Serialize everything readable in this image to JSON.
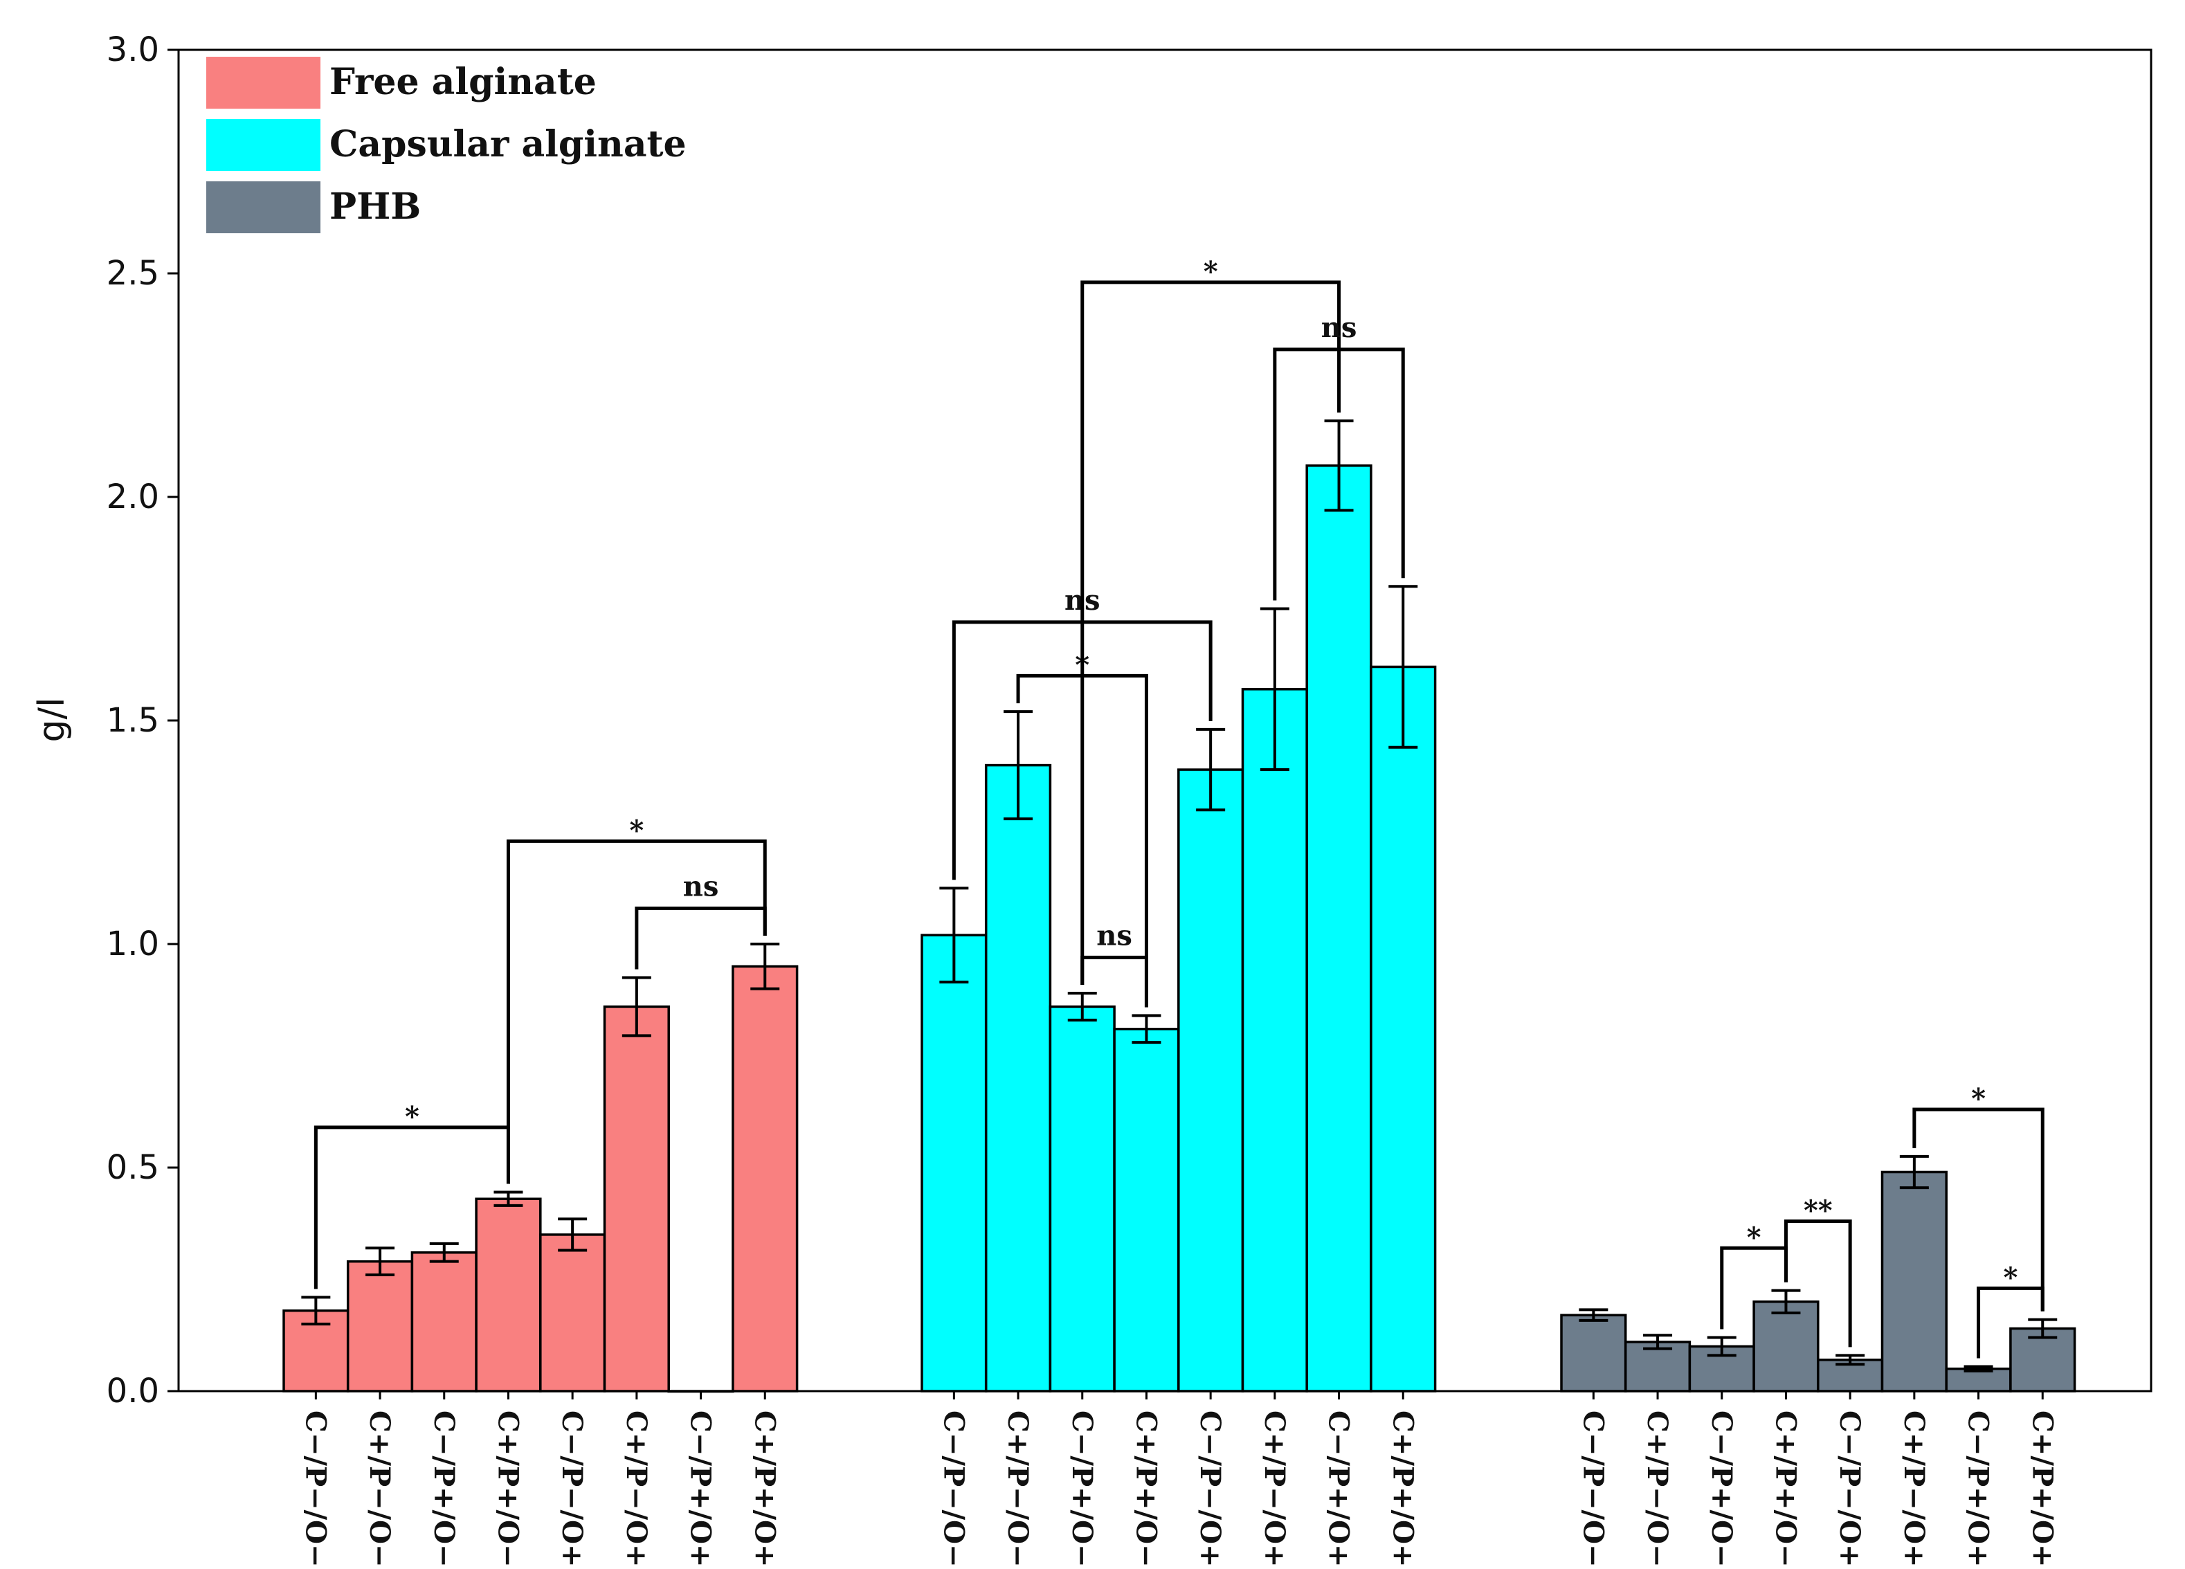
{
  "chart_data": {
    "type": "bar",
    "title": "",
    "xlabel": "",
    "ylabel": "g/l",
    "ylim": [
      0,
      3.0
    ],
    "yticks": [
      "0.0",
      "0.5",
      "1.0",
      "1.5",
      "2.0",
      "2.5",
      "3.0"
    ],
    "grid": false,
    "legend_position": "top-left",
    "categories": [
      "C−/P−/O−",
      "C+/P−/O−",
      "C−/P+/O−",
      "C+/P+/O−",
      "C−/P−/O+",
      "C+/P−/O+",
      "C−/P+/O+",
      "C+/P+/O+"
    ],
    "series": [
      {
        "name": "Free alginate",
        "color": "#f98080",
        "values": [
          0.18,
          0.29,
          0.31,
          0.43,
          0.35,
          0.86,
          0.0,
          0.95
        ],
        "errors": [
          0.03,
          0.03,
          0.02,
          0.015,
          0.035,
          0.065,
          0.0,
          0.05
        ],
        "significance": [
          {
            "from": 0,
            "to": 3,
            "label": "*",
            "level": 0.59
          },
          {
            "from": 3,
            "to": 7,
            "label": "*",
            "level": 1.23
          },
          {
            "from": 5,
            "to": 7,
            "label": "ns",
            "level": 1.08
          }
        ]
      },
      {
        "name": "Capsular alginate",
        "color": "#00ffff",
        "values": [
          1.02,
          1.4,
          0.86,
          0.81,
          1.39,
          1.57,
          2.07,
          1.62
        ],
        "errors": [
          0.105,
          0.12,
          0.03,
          0.03,
          0.09,
          0.18,
          0.1,
          0.18
        ],
        "significance": [
          {
            "from": 0,
            "to": 4,
            "label": "ns",
            "level": 1.72
          },
          {
            "from": 1,
            "to": 3,
            "label": "*",
            "level": 1.6
          },
          {
            "from": 2,
            "to": 3,
            "label": "ns",
            "level": 0.97
          },
          {
            "from": 2,
            "to": 6,
            "label": "*",
            "level": 2.48
          },
          {
            "from": 5,
            "to": 7,
            "label": "ns",
            "level": 2.33
          }
        ]
      },
      {
        "name": "PHB",
        "color": "#6d7d8c",
        "values": [
          0.17,
          0.11,
          0.1,
          0.2,
          0.07,
          0.49,
          0.05,
          0.14
        ],
        "errors": [
          0.012,
          0.015,
          0.02,
          0.025,
          0.01,
          0.035,
          0.005,
          0.02
        ],
        "significance": [
          {
            "from": 2,
            "to": 3,
            "label": "*",
            "level": 0.32
          },
          {
            "from": 3,
            "to": 4,
            "label": "**",
            "level": 0.38
          },
          {
            "from": 5,
            "to": 7,
            "label": "*",
            "level": 0.63
          },
          {
            "from": 6,
            "to": 7,
            "label": "*",
            "level": 0.23
          }
        ]
      }
    ]
  }
}
